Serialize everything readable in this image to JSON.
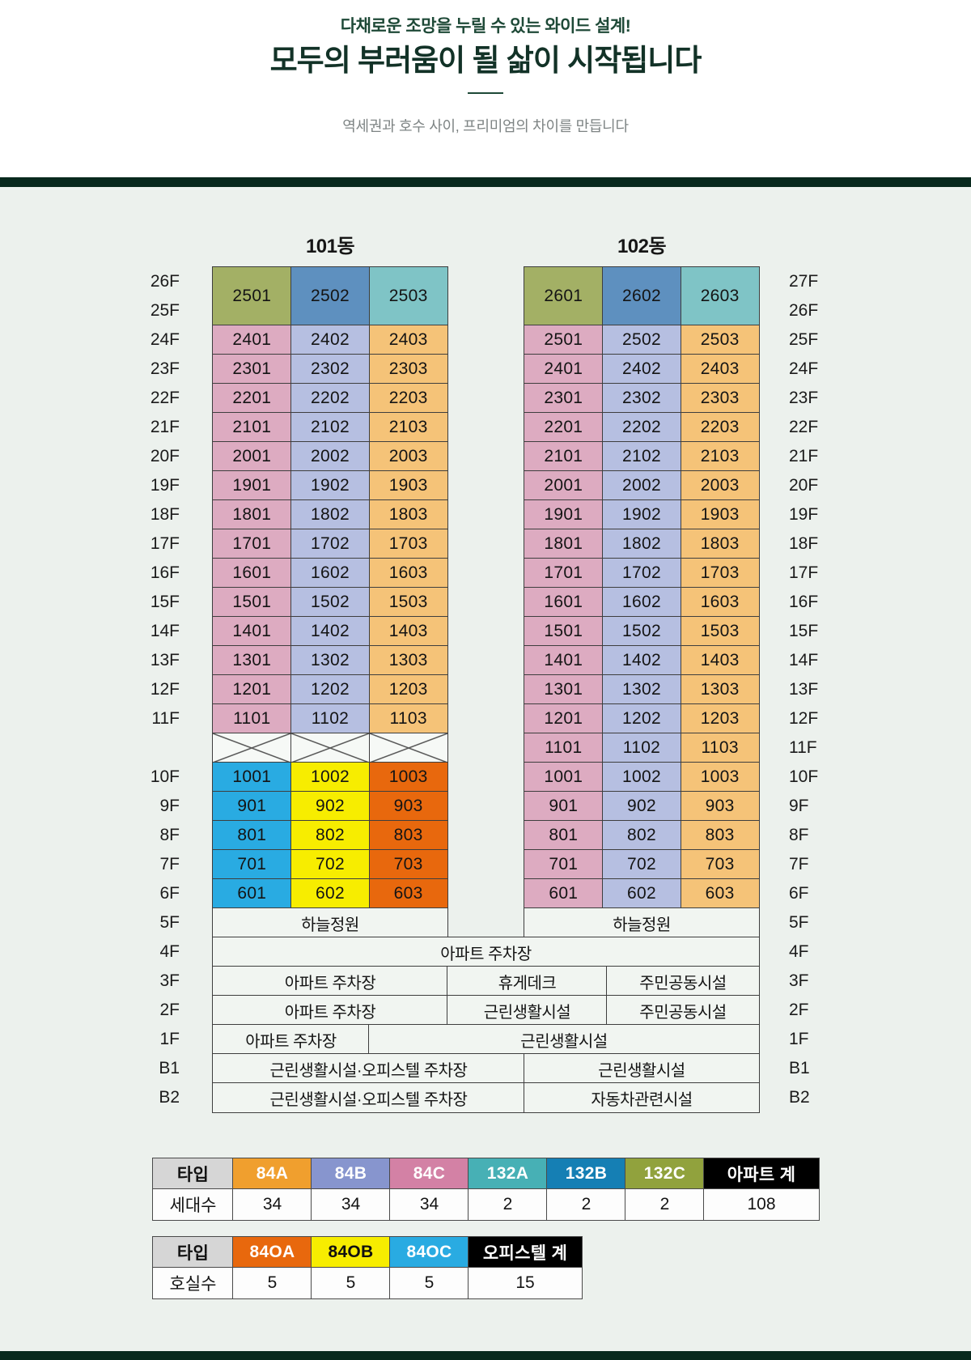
{
  "header": {
    "kicker": "다채로운 조망을 누릴 수 있는 와이드 설계!",
    "title": "모두의 부러움이 될 삶이 시작됩니다",
    "tagline": "역세권과 호수 사이, 프리미엄의 차이를 만듭니다"
  },
  "colors": {
    "accent_bar": "#08291d",
    "content_background": "#ecf1ed",
    "cell_border": "#3e3e3e",
    "legend_header_gray": "#d6d6d6",
    "legend_total_black": "#000000"
  },
  "unit_types": {
    "84A": {
      "legend": "#f09f2e",
      "cell": "#f5c378",
      "legend_text": "#ffffff"
    },
    "84B": {
      "legend": "#8795ce",
      "cell": "#b6bfe1",
      "legend_text": "#ffffff"
    },
    "84C": {
      "legend": "#d381a5",
      "cell": "#ddabc1",
      "legend_text": "#ffffff"
    },
    "132A": {
      "legend": "#47b0b5",
      "cell": "#7fc4c6",
      "legend_text": "#ffffff"
    },
    "132B": {
      "legend": "#157fb4",
      "cell": "#5e90bf",
      "legend_text": "#ffffff"
    },
    "132C": {
      "legend": "#91a23d",
      "cell": "#a3b065",
      "legend_text": "#ffffff"
    },
    "84OA": {
      "legend": "#e8680d",
      "cell": "#e8680d",
      "legend_text": "#ffffff"
    },
    "84OB": {
      "legend": "#f7ed00",
      "cell": "#f7ed00",
      "legend_text": "#111111"
    },
    "84OC": {
      "legend": "#29abe2",
      "cell": "#29abe2",
      "legend_text": "#ffffff"
    }
  },
  "type_groups": {
    "apt": [
      "84C",
      "84B",
      "84A"
    ],
    "off": [
      "84OC",
      "84OB",
      "84OA"
    ],
    "pent": [
      "132C",
      "132B",
      "132A"
    ]
  },
  "buildings": [
    {
      "name": "101동",
      "merged_top": {
        "labels": [
          "26F",
          "25F"
        ],
        "nos": [
          "2501",
          "2502",
          "2503"
        ],
        "types": "pent"
      },
      "floors": [
        {
          "label": "24F",
          "nos": [
            "2401",
            "2402",
            "2403"
          ],
          "types": "apt"
        },
        {
          "label": "23F",
          "nos": [
            "2301",
            "2302",
            "2303"
          ],
          "types": "apt"
        },
        {
          "label": "22F",
          "nos": [
            "2201",
            "2202",
            "2203"
          ],
          "types": "apt"
        },
        {
          "label": "21F",
          "nos": [
            "2101",
            "2102",
            "2103"
          ],
          "types": "apt"
        },
        {
          "label": "20F",
          "nos": [
            "2001",
            "2002",
            "2003"
          ],
          "types": "apt"
        },
        {
          "label": "19F",
          "nos": [
            "1901",
            "1902",
            "1903"
          ],
          "types": "apt"
        },
        {
          "label": "18F",
          "nos": [
            "1801",
            "1802",
            "1803"
          ],
          "types": "apt"
        },
        {
          "label": "17F",
          "nos": [
            "1701",
            "1702",
            "1703"
          ],
          "types": "apt"
        },
        {
          "label": "16F",
          "nos": [
            "1601",
            "1602",
            "1603"
          ],
          "types": "apt"
        },
        {
          "label": "15F",
          "nos": [
            "1501",
            "1502",
            "1503"
          ],
          "types": "apt"
        },
        {
          "label": "14F",
          "nos": [
            "1401",
            "1402",
            "1403"
          ],
          "types": "apt"
        },
        {
          "label": "13F",
          "nos": [
            "1301",
            "1302",
            "1303"
          ],
          "types": "apt"
        },
        {
          "label": "12F",
          "nos": [
            "1201",
            "1202",
            "1203"
          ],
          "types": "apt"
        },
        {
          "label": "11F",
          "nos": [
            "1101",
            "1102",
            "1103"
          ],
          "types": "apt"
        },
        {
          "label": "",
          "crossed": true
        },
        {
          "label": "10F",
          "nos": [
            "1001",
            "1002",
            "1003"
          ],
          "types": "off"
        },
        {
          "label": "9F",
          "nos": [
            "901",
            "902",
            "903"
          ],
          "types": "off"
        },
        {
          "label": "8F",
          "nos": [
            "801",
            "802",
            "803"
          ],
          "types": "off"
        },
        {
          "label": "7F",
          "nos": [
            "701",
            "702",
            "703"
          ],
          "types": "off"
        },
        {
          "label": "6F",
          "nos": [
            "601",
            "602",
            "603"
          ],
          "types": "off"
        }
      ],
      "garden": {
        "label": "5F",
        "text": "하늘정원"
      }
    },
    {
      "name": "102동",
      "merged_top": {
        "labels": [
          "27F",
          "26F"
        ],
        "nos": [
          "2601",
          "2602",
          "2603"
        ],
        "types": "pent"
      },
      "floors": [
        {
          "label": "25F",
          "nos": [
            "2501",
            "2502",
            "2503"
          ],
          "types": "apt"
        },
        {
          "label": "24F",
          "nos": [
            "2401",
            "2402",
            "2403"
          ],
          "types": "apt"
        },
        {
          "label": "23F",
          "nos": [
            "2301",
            "2302",
            "2303"
          ],
          "types": "apt"
        },
        {
          "label": "22F",
          "nos": [
            "2201",
            "2202",
            "2203"
          ],
          "types": "apt"
        },
        {
          "label": "21F",
          "nos": [
            "2101",
            "2102",
            "2103"
          ],
          "types": "apt"
        },
        {
          "label": "20F",
          "nos": [
            "2001",
            "2002",
            "2003"
          ],
          "types": "apt"
        },
        {
          "label": "19F",
          "nos": [
            "1901",
            "1902",
            "1903"
          ],
          "types": "apt"
        },
        {
          "label": "18F",
          "nos": [
            "1801",
            "1802",
            "1803"
          ],
          "types": "apt"
        },
        {
          "label": "17F",
          "nos": [
            "1701",
            "1702",
            "1703"
          ],
          "types": "apt"
        },
        {
          "label": "16F",
          "nos": [
            "1601",
            "1602",
            "1603"
          ],
          "types": "apt"
        },
        {
          "label": "15F",
          "nos": [
            "1501",
            "1502",
            "1503"
          ],
          "types": "apt"
        },
        {
          "label": "14F",
          "nos": [
            "1401",
            "1402",
            "1403"
          ],
          "types": "apt"
        },
        {
          "label": "13F",
          "nos": [
            "1301",
            "1302",
            "1303"
          ],
          "types": "apt"
        },
        {
          "label": "12F",
          "nos": [
            "1201",
            "1202",
            "1203"
          ],
          "types": "apt"
        },
        {
          "label": "11F",
          "nos": [
            "1101",
            "1102",
            "1103"
          ],
          "types": "apt"
        },
        {
          "label": "10F",
          "nos": [
            "1001",
            "1002",
            "1003"
          ],
          "types": "apt"
        },
        {
          "label": "9F",
          "nos": [
            "901",
            "902",
            "903"
          ],
          "types": "apt"
        },
        {
          "label": "8F",
          "nos": [
            "801",
            "802",
            "803"
          ],
          "types": "apt"
        },
        {
          "label": "7F",
          "nos": [
            "701",
            "702",
            "703"
          ],
          "types": "apt"
        },
        {
          "label": "6F",
          "nos": [
            "601",
            "602",
            "603"
          ],
          "types": "apt"
        }
      ],
      "garden": {
        "label": "5F",
        "text": "하늘정원"
      }
    }
  ],
  "common_floors": [
    {
      "label": "4F",
      "cells": [
        {
          "text": "아파트 주차장",
          "span": "full"
        }
      ]
    },
    {
      "label": "3F",
      "cells": [
        {
          "text": "아파트 주차장",
          "span": "L"
        },
        {
          "text": "휴게데크",
          "span": "M"
        },
        {
          "text": "주민공동시설",
          "span": "R"
        }
      ]
    },
    {
      "label": "2F",
      "cells": [
        {
          "text": "아파트 주차장",
          "span": "L"
        },
        {
          "text": "근린생활시설",
          "span": "M"
        },
        {
          "text": "주민공동시설",
          "span": "R"
        }
      ]
    },
    {
      "label": "1F",
      "cells": [
        {
          "text": "아파트 주차장",
          "span": "L2"
        },
        {
          "text": "근린생활시설",
          "span": "REST"
        }
      ]
    },
    {
      "label": "B1",
      "cells": [
        {
          "text": "근린생활시설·오피스텔 주차장",
          "span": "LH"
        },
        {
          "text": "근린생활시설",
          "span": "RH"
        }
      ]
    },
    {
      "label": "B2",
      "cells": [
        {
          "text": "근린생활시설·오피스텔 주차장",
          "span": "LH"
        },
        {
          "text": "자동차관련시설",
          "span": "RH"
        }
      ]
    }
  ],
  "legend": [
    {
      "head": "타입",
      "value_head": "세대수",
      "cols": [
        [
          "84A",
          "34"
        ],
        [
          "84B",
          "34"
        ],
        [
          "84C",
          "34"
        ],
        [
          "132A",
          "2"
        ],
        [
          "132B",
          "2"
        ],
        [
          "132C",
          "2"
        ]
      ],
      "total": [
        "아파트 계",
        "108"
      ]
    },
    {
      "head": "타입",
      "value_head": "호실수",
      "cols": [
        [
          "84OA",
          "5"
        ],
        [
          "84OB",
          "5"
        ],
        [
          "84OC",
          "5"
        ]
      ],
      "total": [
        "오피스텔 계",
        "15"
      ]
    }
  ]
}
